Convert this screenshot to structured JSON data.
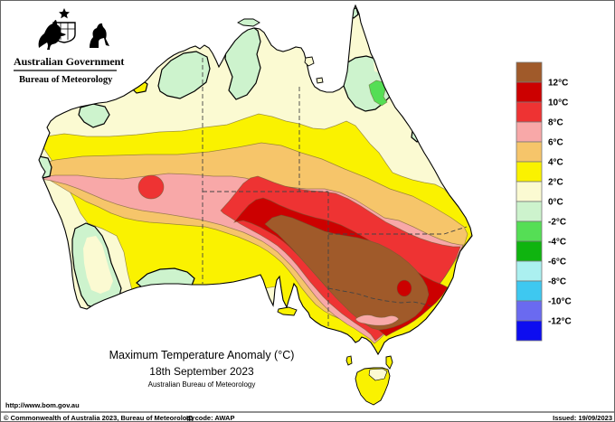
{
  "header": {
    "government": "Australian Government",
    "bureau": "Bureau of Meteorology"
  },
  "titles": {
    "main": "Maximum Temperature Anomaly (°C)",
    "date": "18th September 2023",
    "org": "Australian Bureau of Meteorology"
  },
  "legend": {
    "labels": [
      "12°C",
      "10°C",
      "8°C",
      "6°C",
      "4°C",
      "2°C",
      "0°C",
      "-2°C",
      "-4°C",
      "-6°C",
      "-8°C",
      "-10°C",
      "-12°C"
    ],
    "colors": [
      "#A05A2A",
      "#CC0000",
      "#EE3333",
      "#F8A8A8",
      "#F6C56A",
      "#FAF200",
      "#FBFAD2",
      "#CDF3CD",
      "#55DE55",
      "#0FB40F",
      "#ABF0F0",
      "#3EC8F0",
      "#6A6AF0",
      "#0D0DF0"
    ]
  },
  "palette": {
    "brown": "#A05A2A",
    "dark_red": "#CC0000",
    "red": "#EE3333",
    "pink": "#F8A8A8",
    "orange": "#F6C56A",
    "yellow": "#FAF200",
    "cream": "#FBFAD2",
    "pale_green": "#CDF3CD",
    "green": "#55DE55",
    "dark_green": "#0FB40F",
    "pale_cyan": "#ABF0F0",
    "cyan": "#3EC8F0",
    "blue_violet": "#6A6AF0",
    "blue": "#0D0DF0",
    "ink": "#000000"
  },
  "footer": {
    "url": "http://www.bom.gov.au",
    "copyright": "© Commonwealth of Australia 2023, Bureau of Meteorology",
    "id_code": "ID code: AWAP",
    "issued": "Issued: 19/09/2023"
  }
}
